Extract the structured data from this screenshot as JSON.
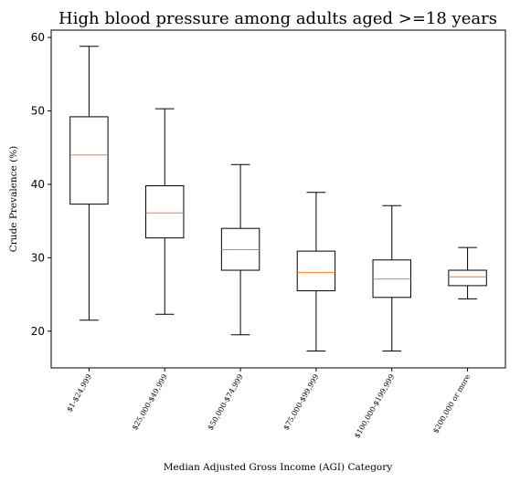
{
  "chart_data": {
    "type": "box",
    "title": "High blood pressure among adults aged >=18 years",
    "xlabel": "Median Adjusted Gross Income (AGI) Category",
    "ylabel": "Crude Prevalence (%)",
    "ylim": [
      15,
      61
    ],
    "yticks": [
      20,
      30,
      40,
      50,
      60
    ],
    "grid": false,
    "categories": [
      "$1-$24,999",
      "$25,000-$49,999",
      "$50,000-$74,999",
      "$75,000-$99,999",
      "$100,000-$199,999",
      "$200,000 or more"
    ],
    "boxes": [
      {
        "whisker_low": 21.5,
        "q1": 37.3,
        "median": 44.0,
        "q3": 49.2,
        "whisker_high": 58.8
      },
      {
        "whisker_low": 22.3,
        "q1": 32.7,
        "median": 36.1,
        "q3": 39.8,
        "whisker_high": 50.3
      },
      {
        "whisker_low": 19.5,
        "q1": 28.3,
        "median": 31.1,
        "q3": 34.0,
        "whisker_high": 42.7
      },
      {
        "whisker_low": 17.3,
        "q1": 25.5,
        "median": 28.0,
        "q3": 30.9,
        "whisker_high": 38.9
      },
      {
        "whisker_low": 17.3,
        "q1": 24.6,
        "median": 27.1,
        "q3": 29.7,
        "whisker_high": 37.1
      },
      {
        "whisker_low": 24.4,
        "q1": 26.2,
        "median": 27.4,
        "q3": 28.3,
        "whisker_high": 31.4
      }
    ],
    "colors": {
      "box": "#000000",
      "median": "#ff7f0e",
      "axes": "#000000"
    }
  }
}
